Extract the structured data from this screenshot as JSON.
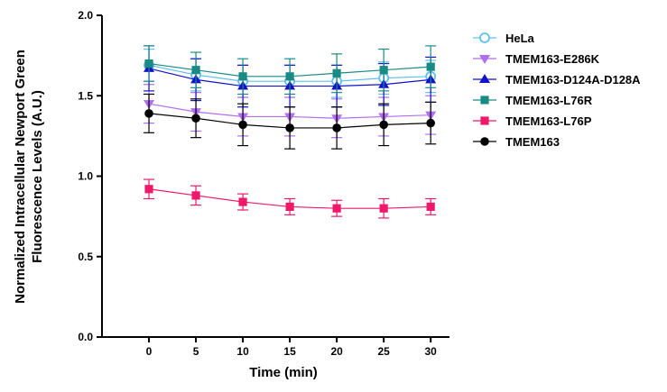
{
  "chart_data": {
    "type": "line",
    "xlabel": "Time (min)",
    "ylabel_lines": [
      "Normalized Intracellular Newport Green",
      "Fluorescence Levels (A.U.)"
    ],
    "x": [
      0,
      5,
      10,
      15,
      20,
      25,
      30
    ],
    "x_ticks": [
      "0",
      "5",
      "10",
      "15",
      "20",
      "25",
      "30"
    ],
    "y_ticks": [
      "0.0",
      "0.5",
      "1.0",
      "1.5",
      "2.0"
    ],
    "ylim": [
      0,
      2
    ],
    "grid": false,
    "legend_position": "right",
    "series": [
      {
        "name": "HeLa",
        "color": "#5ec0ec",
        "marker": "open-circle",
        "values": [
          1.69,
          1.63,
          1.59,
          1.59,
          1.59,
          1.61,
          1.62
        ],
        "errors": [
          0.1,
          0.1,
          0.1,
          0.1,
          0.1,
          0.1,
          0.1
        ]
      },
      {
        "name": "TMEM163-E286K",
        "color": "#b06ef0",
        "marker": "triangle-down",
        "values": [
          1.45,
          1.4,
          1.37,
          1.37,
          1.36,
          1.37,
          1.38
        ],
        "errors": [
          0.12,
          0.12,
          0.12,
          0.12,
          0.12,
          0.12,
          0.12
        ]
      },
      {
        "name": "TMEM163-D124A-D128A",
        "color": "#1212c8",
        "marker": "triangle-up",
        "values": [
          1.67,
          1.6,
          1.56,
          1.56,
          1.56,
          1.57,
          1.6
        ],
        "errors": [
          0.14,
          0.13,
          0.13,
          0.13,
          0.13,
          0.13,
          0.14
        ]
      },
      {
        "name": "TMEM163-L76R",
        "color": "#1a8a84",
        "marker": "square",
        "values": [
          1.7,
          1.66,
          1.62,
          1.62,
          1.64,
          1.66,
          1.68
        ],
        "errors": [
          0.11,
          0.11,
          0.11,
          0.11,
          0.12,
          0.13,
          0.13
        ]
      },
      {
        "name": "TMEM163-L76P",
        "color": "#f0186a",
        "marker": "square",
        "values": [
          0.92,
          0.88,
          0.84,
          0.81,
          0.8,
          0.8,
          0.81
        ],
        "errors": [
          0.06,
          0.06,
          0.05,
          0.05,
          0.05,
          0.06,
          0.05
        ]
      },
      {
        "name": "TMEM163",
        "color": "#000000",
        "marker": "circle",
        "values": [
          1.39,
          1.36,
          1.32,
          1.3,
          1.3,
          1.32,
          1.33
        ],
        "errors": [
          0.12,
          0.12,
          0.13,
          0.13,
          0.13,
          0.13,
          0.13
        ]
      }
    ]
  }
}
